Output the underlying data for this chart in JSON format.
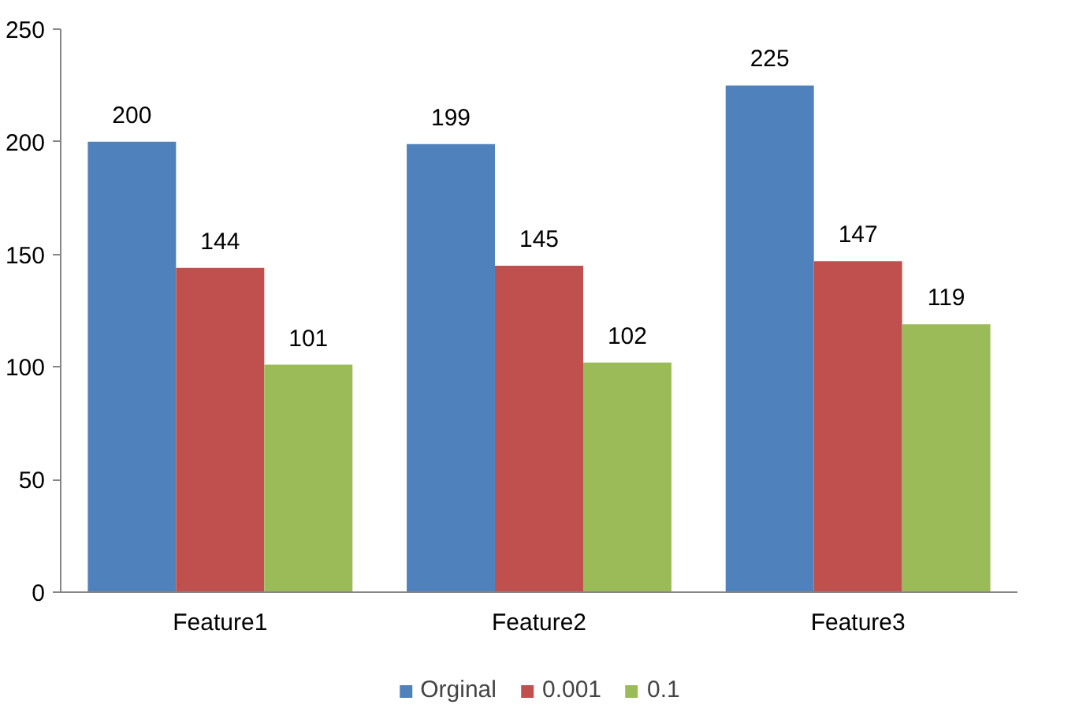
{
  "chart_data": {
    "type": "bar",
    "categories": [
      "Feature1",
      "Feature2",
      "Feature3"
    ],
    "series": [
      {
        "name": "Orginal",
        "color": "#4f81bd",
        "values": [
          200,
          199,
          225
        ]
      },
      {
        "name": "0.001",
        "color": "#c0504d",
        "values": [
          144,
          145,
          147
        ]
      },
      {
        "name": "0.1",
        "color": "#9bbb59",
        "values": [
          101,
          102,
          119
        ]
      }
    ],
    "ylim": [
      0,
      250
    ],
    "yticks": [
      0,
      50,
      100,
      150,
      200,
      250
    ],
    "grid": false,
    "legend": "bottom",
    "data_labels": true
  }
}
